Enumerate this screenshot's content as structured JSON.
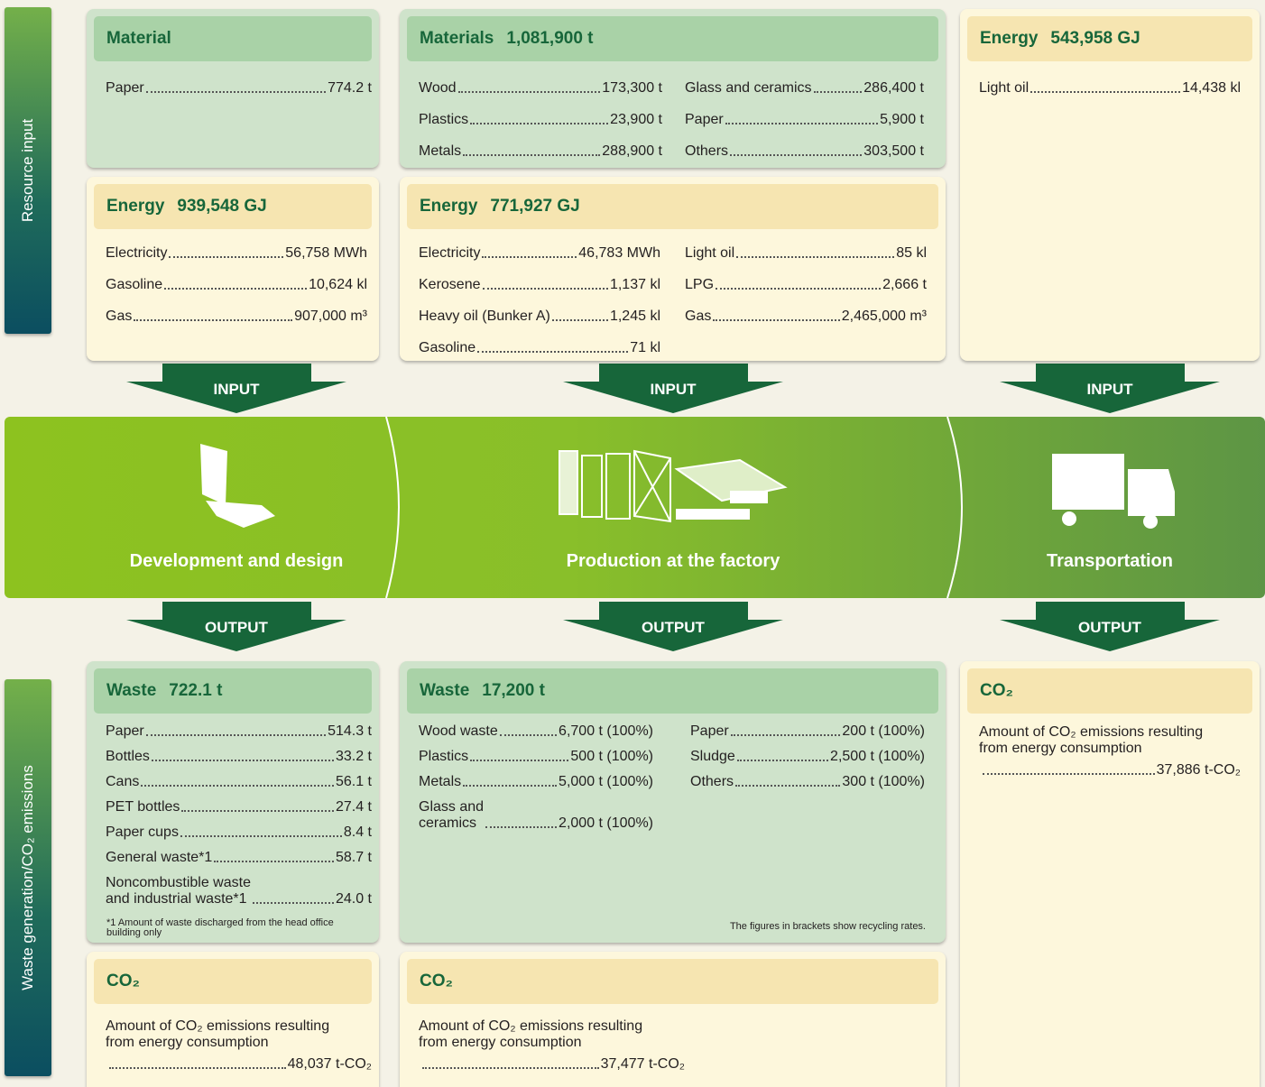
{
  "side_labels": [
    "Resource input",
    "Waste generation/CO₂ emissions"
  ],
  "panels": [
    {
      "title": "Material",
      "columns": [
        [
          {
            "label": "Paper",
            "value": "774.2 t"
          }
        ]
      ]
    },
    {
      "title": "Materials",
      "amount": "1,081,900 t",
      "columns": [
        [
          {
            "label": "Wood",
            "value": "173,300 t"
          },
          {
            "label": "Plastics",
            "value": "23,900 t"
          },
          {
            "label": "Metals",
            "value": "288,900 t"
          }
        ],
        [
          {
            "label": "Glass and ceramics",
            "value": "286,400 t"
          },
          {
            "label": "Paper",
            "value": "5,900 t"
          },
          {
            "label": "Others",
            "value": "303,500 t"
          }
        ]
      ]
    },
    {
      "title": "Energy",
      "amount": "543,958 GJ",
      "columns": [
        [
          {
            "label": "Light oil",
            "value": "14,438 kl"
          }
        ]
      ]
    },
    {
      "title": "Energy",
      "amount": "939,548 GJ",
      "columns": [
        [
          {
            "label": "Electricity",
            "value": "56,758 MWh"
          },
          {
            "label": "Gasoline",
            "value": "10,624 kl"
          },
          {
            "label": "Gas",
            "value": "907,000 m³"
          }
        ]
      ]
    },
    {
      "title": "Energy",
      "amount": "771,927 GJ",
      "columns": [
        [
          {
            "label": "Electricity",
            "value": "46,783 MWh"
          },
          {
            "label": "Kerosene",
            "value": "1,137 kl"
          },
          {
            "label": "Heavy oil (Bunker A)",
            "value": "1,245 kl"
          },
          {
            "label": "Gasoline",
            "value": "71 kl"
          }
        ],
        [
          {
            "label": "Light oil",
            "value": "85 kl"
          },
          {
            "label": "LPG",
            "value": "2,666 t"
          },
          {
            "label": "Gas",
            "value": "2,465,000 m³"
          }
        ]
      ]
    },
    {
      "title": "Waste",
      "amount": "722.1 t",
      "columns": [
        [
          {
            "label": "Paper",
            "value": "514.3 t"
          },
          {
            "label": "Bottles",
            "value": "33.2 t"
          },
          {
            "label": "Cans",
            "value": "56.1 t"
          },
          {
            "label": "PET bottles",
            "value": "27.4 t"
          },
          {
            "label": "Paper cups",
            "value": "8.4 t"
          },
          {
            "label": "General waste*1",
            "value": "58.7 t"
          },
          {
            "label": "Noncombustible waste\nand industrial waste*1",
            "value": "24.0 t"
          }
        ]
      ],
      "note": "*1 Amount of waste discharged from the head office\nbuilding only"
    },
    {
      "title": "Waste",
      "amount": "17,200 t",
      "columns": [
        [
          {
            "label": "Wood waste",
            "value": "6,700 t (100%)"
          },
          {
            "label": "Plastics",
            "value": "500 t (100%)"
          },
          {
            "label": "Metals",
            "value": "5,000 t (100%)"
          },
          {
            "label": "Glass and\nceramics",
            "value": "2,000 t (100%)"
          }
        ],
        [
          {
            "label": "Paper",
            "value": "200 t (100%)"
          },
          {
            "label": "Sludge",
            "value": "2,500 t (100%)"
          },
          {
            "label": "Others",
            "value": "300 t (100%)"
          }
        ]
      ],
      "note": "The figures in brackets show recycling rates."
    },
    {
      "title": "CO₂",
      "text": "Amount of CO₂ emissions resulting\nfrom energy consumption",
      "value": "37,886  t-CO₂"
    },
    {
      "title": "CO₂",
      "text": "Amount of CO₂ emissions resulting\nfrom energy consumption",
      "value": "48,037 t-CO₂"
    },
    {
      "title": "CO₂",
      "text": "Amount of CO₂ emissions resulting\nfrom energy consumption",
      "value": "37,477 t-CO₂"
    }
  ],
  "arrows": {
    "input": [
      "INPUT",
      "INPUT",
      "INPUT"
    ],
    "output": [
      "OUTPUT",
      "OUTPUT",
      "OUTPUT"
    ]
  },
  "stages": [
    "Development and design",
    "Production at the factory",
    "Transportation"
  ]
}
